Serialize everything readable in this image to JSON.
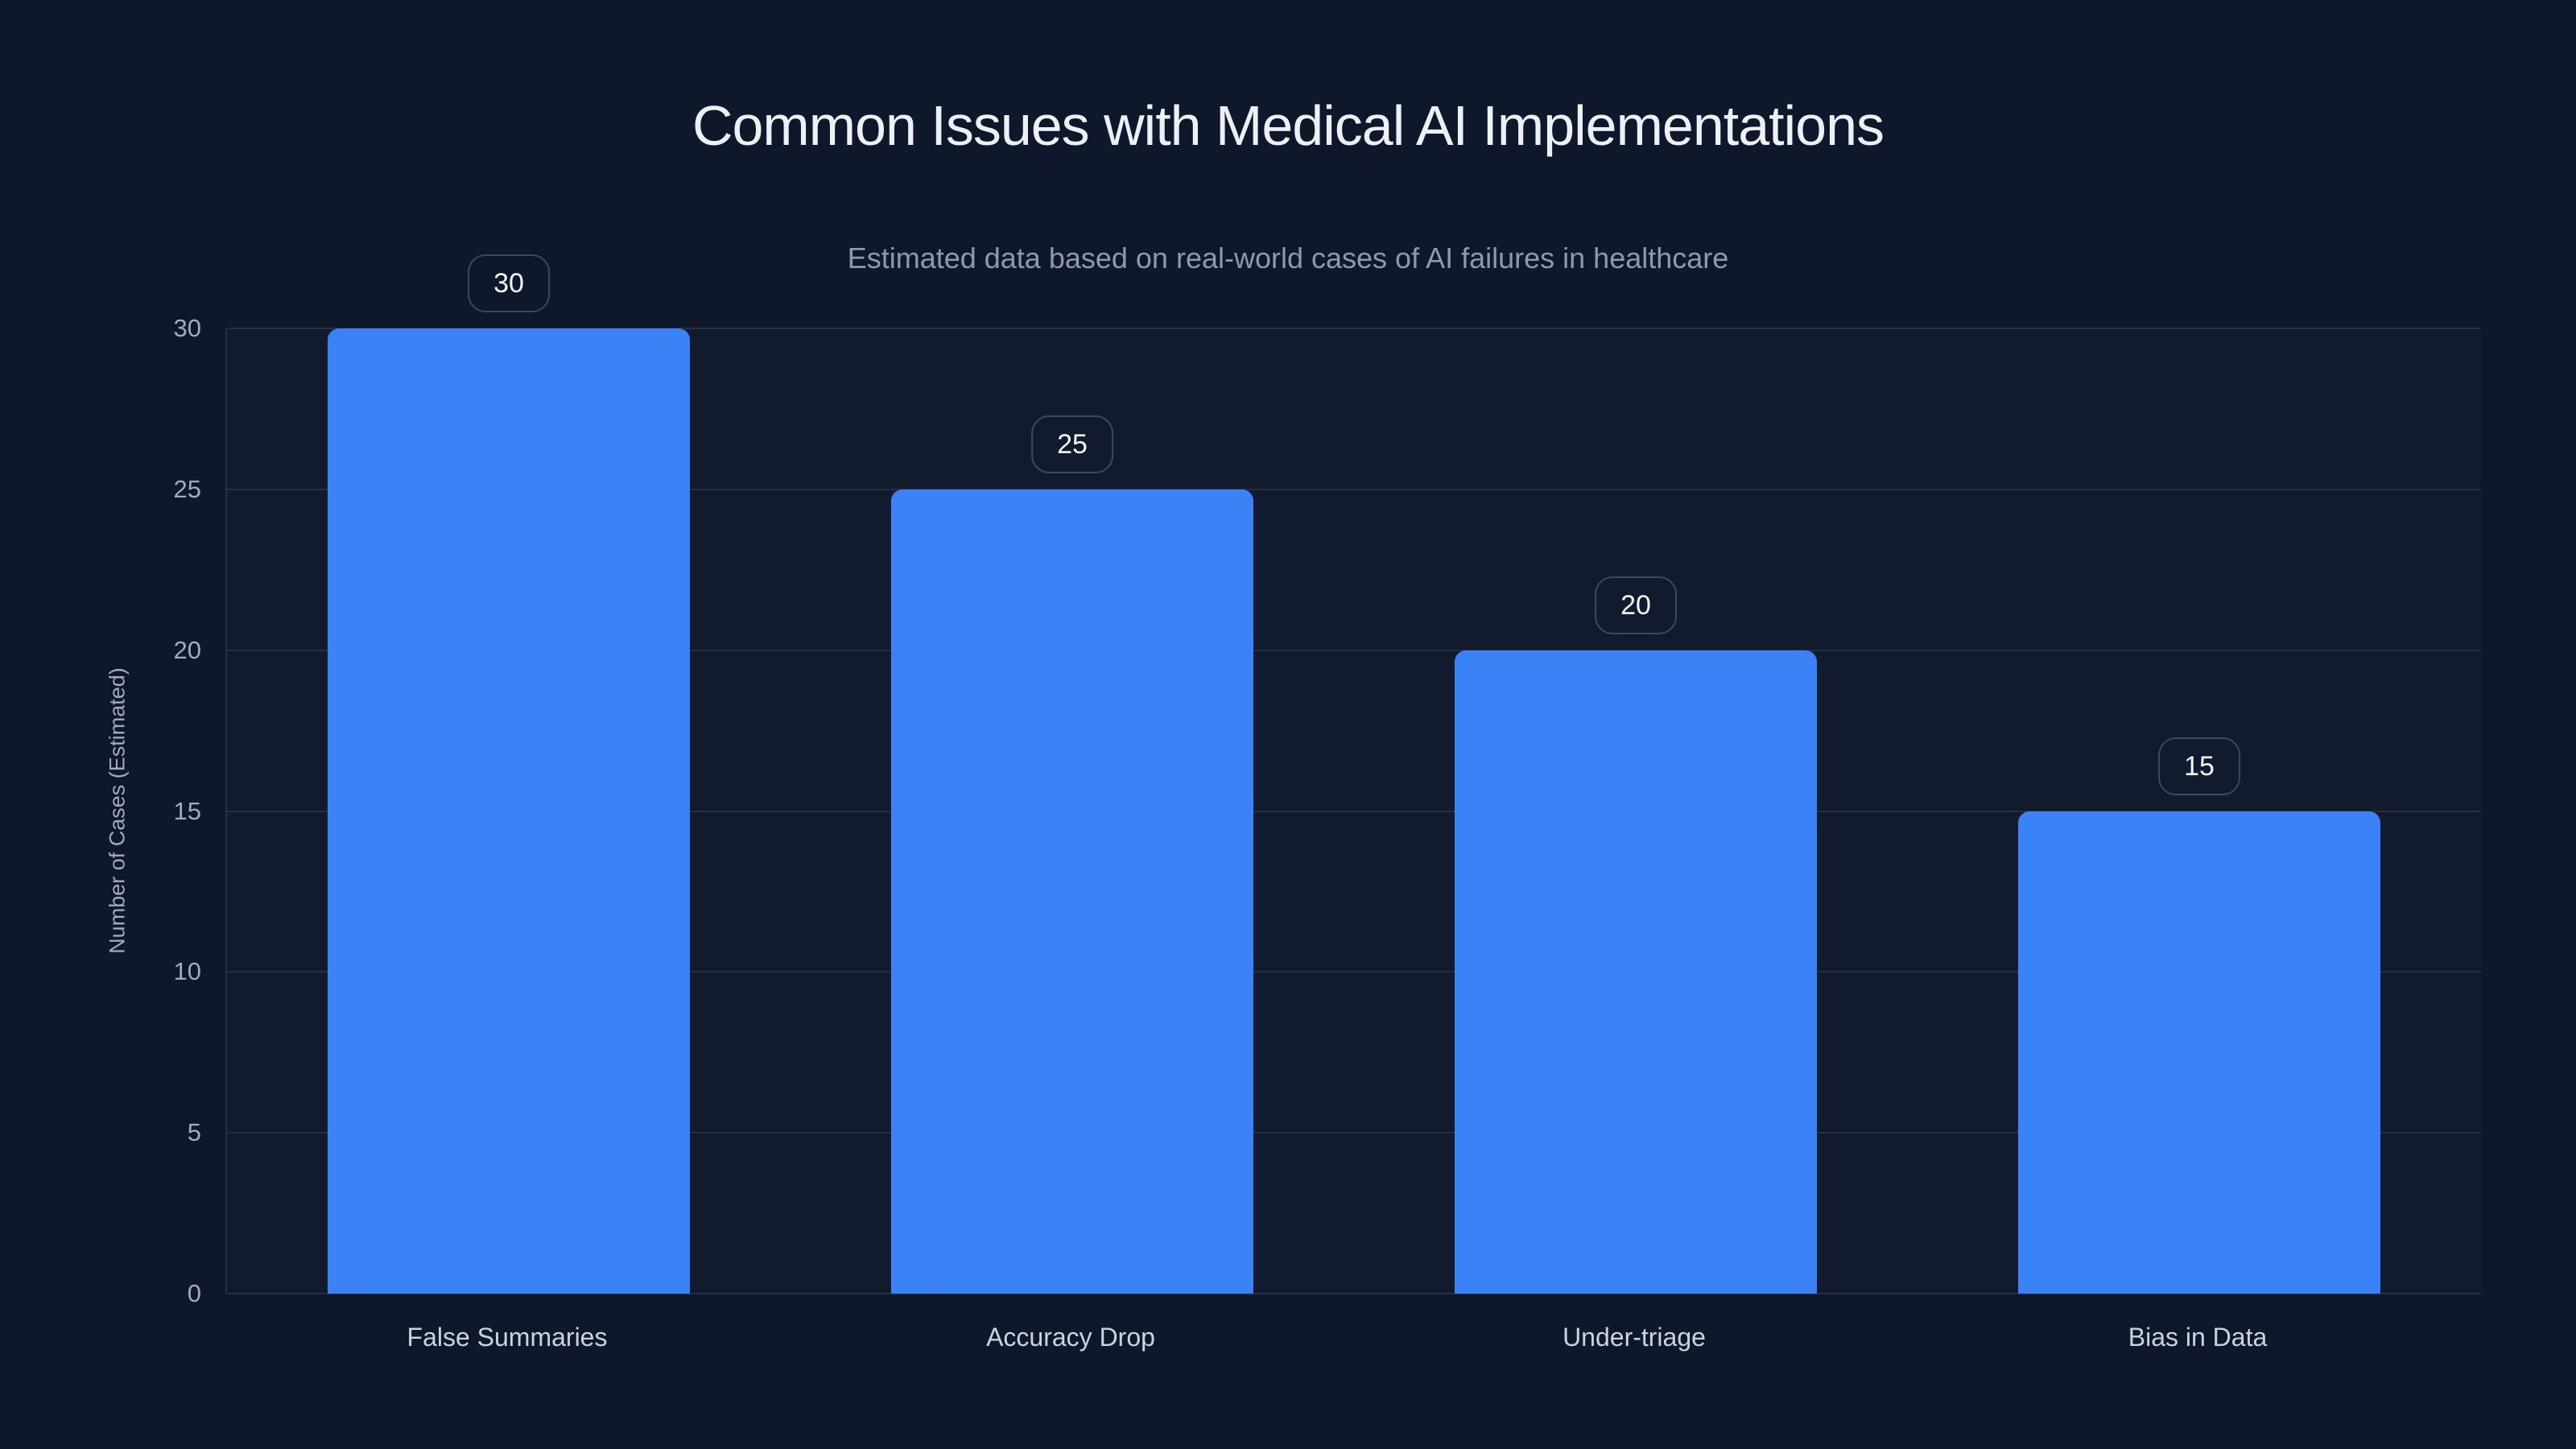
{
  "chart_data": {
    "type": "bar",
    "title": "Common Issues with Medical AI Implementations",
    "subtitle": "Estimated data based on real-world cases of AI failures in healthcare",
    "ylabel": "Number of Cases (Estimated)",
    "xlabel": "",
    "categories": [
      "False Summaries",
      "Accuracy Drop",
      "Under-triage",
      "Bias in Data"
    ],
    "values": [
      30,
      25,
      20,
      15
    ],
    "value_labels": [
      "30",
      "25",
      "20",
      "15"
    ],
    "ylim": [
      0,
      30
    ],
    "yticks": [
      0,
      5,
      10,
      15,
      20,
      25,
      30
    ],
    "grid": true,
    "legend": false
  },
  "colors": {
    "background": "#0f172a",
    "bar": "#3b82f6",
    "gridline": "rgba(148,163,184,0.16)",
    "title_text": "#edf1f7",
    "subtitle_text": "#8e99ac",
    "tick_text": "#a0abbf",
    "category_text": "#cbd3e0",
    "badge_border": "#3e4859",
    "badge_text": "#f2f5fa"
  }
}
